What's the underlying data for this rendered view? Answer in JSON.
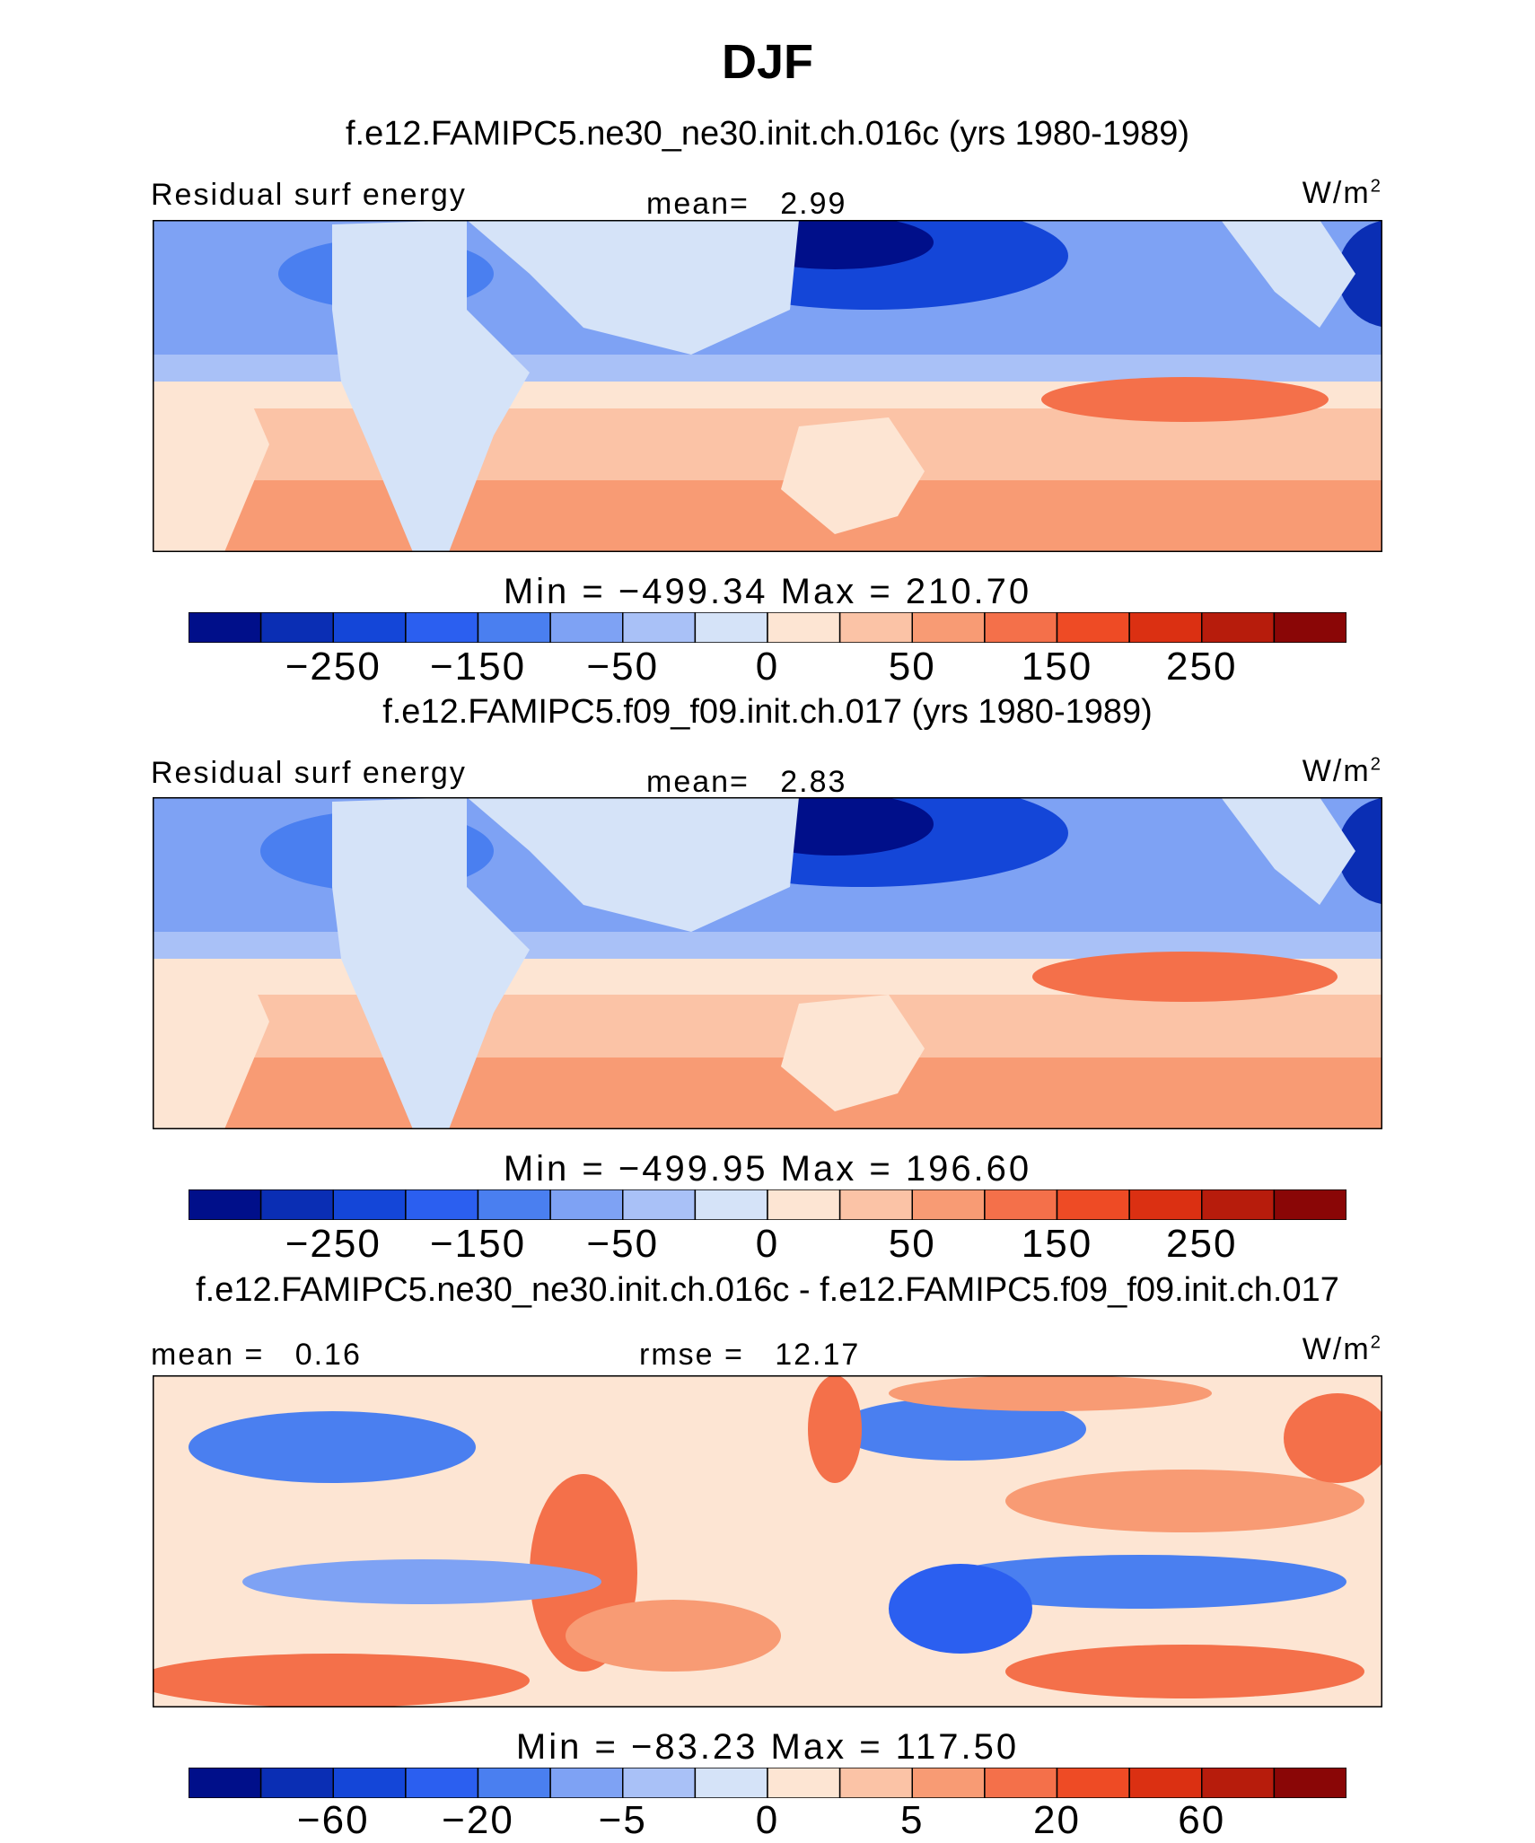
{
  "main_title": "DJF",
  "panels": [
    {
      "case_title": "f.e12.FAMIPC5.ne30_ne30.init.ch.016c (yrs 1980-1989)",
      "left_label": "Residual surf energy",
      "center_label": "mean=   2.99",
      "units": "W/m",
      "units_sup": "2",
      "minmax": "Min = −499.34 Max = 210.70",
      "tick_labels": [
        "−250",
        "−150",
        "−50",
        "0",
        "50",
        "150",
        "250"
      ]
    },
    {
      "case_title": "f.e12.FAMIPC5.f09_f09.init.ch.017 (yrs 1980-1989)",
      "left_label": "Residual surf energy",
      "center_label": "mean=   2.83",
      "units": "W/m",
      "units_sup": "2",
      "minmax": "Min = −499.95 Max = 196.60",
      "tick_labels": [
        "−250",
        "−150",
        "−50",
        "0",
        "50",
        "150",
        "250"
      ]
    },
    {
      "case_title": "f.e12.FAMIPC5.ne30_ne30.init.ch.016c - f.e12.FAMIPC5.f09_f09.init.ch.017",
      "left_label": "mean =   0.16",
      "center_label": "rmse =   12.17",
      "units": "W/m",
      "units_sup": "2",
      "minmax": "Min = −83.23 Max = 117.50",
      "tick_labels": [
        "−60",
        "−20",
        "−5",
        "0",
        "5",
        "20",
        "60"
      ]
    }
  ],
  "colorbar_colors": [
    "#000f8a",
    "#0a2eb4",
    "#1446d8",
    "#2b5ff0",
    "#4a7ff0",
    "#7ea2f4",
    "#a9c1f7",
    "#d5e3f8",
    "#fde5d3",
    "#fbc3a6",
    "#f89b74",
    "#f4704a",
    "#ee4b25",
    "#db3012",
    "#b71c0c",
    "#8a0606"
  ],
  "chart_data": [
    {
      "type": "heatmap",
      "title": "f.e12.FAMIPC5.ne30_ne30.init.ch.016c (yrs 1980-1989)",
      "variable": "Residual surf energy",
      "units": "W/m2",
      "mean": 2.99,
      "min": -499.34,
      "max": 210.7,
      "colorbar_levels": [
        -300,
        -250,
        -200,
        -150,
        -100,
        -50,
        -25,
        0,
        25,
        50,
        100,
        150,
        200,
        250,
        300
      ],
      "colorbar_tick_values": [
        -250,
        -150,
        -50,
        0,
        50,
        150,
        250
      ]
    },
    {
      "type": "heatmap",
      "title": "f.e12.FAMIPC5.f09_f09.init.ch.017 (yrs 1980-1989)",
      "variable": "Residual surf energy",
      "units": "W/m2",
      "mean": 2.83,
      "min": -499.95,
      "max": 196.6,
      "colorbar_levels": [
        -300,
        -250,
        -200,
        -150,
        -100,
        -50,
        -25,
        0,
        25,
        50,
        100,
        150,
        200,
        250,
        300
      ],
      "colorbar_tick_values": [
        -250,
        -150,
        -50,
        0,
        50,
        150,
        250
      ]
    },
    {
      "type": "heatmap",
      "title": "f.e12.FAMIPC5.ne30_ne30.init.ch.016c - f.e12.FAMIPC5.f09_f09.init.ch.017",
      "units": "W/m2",
      "mean": 0.16,
      "rmse": 12.17,
      "min": -83.23,
      "max": 117.5,
      "colorbar_levels": [
        -80,
        -60,
        -40,
        -20,
        -10,
        -5,
        -2,
        0,
        2,
        5,
        10,
        20,
        40,
        60,
        80
      ],
      "colorbar_tick_values": [
        -60,
        -20,
        -5,
        0,
        5,
        20,
        60
      ]
    }
  ]
}
